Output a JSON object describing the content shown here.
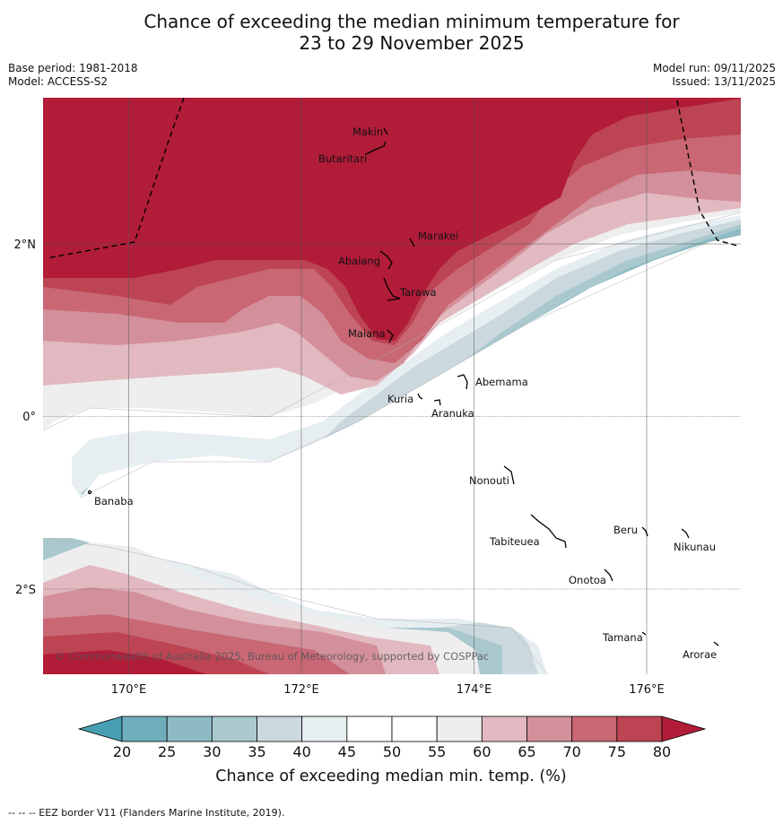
{
  "title": {
    "line1": "Chance of exceeding the median minimum temperature for",
    "line2": "23 to 29 November 2025"
  },
  "meta": {
    "base_period": "Base period: 1981-2018",
    "model": "Model: ACCESS-S2",
    "model_run": "Model run: 09/11/2025",
    "issued": "Issued: 13/11/2025"
  },
  "map": {
    "lon_labels": [
      "170°E",
      "172°E",
      "174°E",
      "176°E"
    ],
    "lat_labels": [
      "2°N",
      "0°",
      "2°S"
    ],
    "copyright": "© Commonwealth of Australia 2025, Bureau of Meteorology, supported by COSPPac",
    "places": [
      {
        "name": "Makin"
      },
      {
        "name": "Butaritari"
      },
      {
        "name": "Marakei"
      },
      {
        "name": "Abaiang"
      },
      {
        "name": "Tarawa"
      },
      {
        "name": "Maiana"
      },
      {
        "name": "Abemama"
      },
      {
        "name": "Kuria"
      },
      {
        "name": "Aranuka"
      },
      {
        "name": "Nonouti"
      },
      {
        "name": "Banaba"
      },
      {
        "name": "Beru"
      },
      {
        "name": "Tabiteuea"
      },
      {
        "name": "Nikunau"
      },
      {
        "name": "Onotoa"
      },
      {
        "name": "Tamana"
      },
      {
        "name": "Arorae"
      }
    ]
  },
  "colorbar": {
    "ticks": [
      "20",
      "25",
      "30",
      "35",
      "40",
      "45",
      "50",
      "55",
      "60",
      "65",
      "70",
      "75",
      "80"
    ],
    "colors": [
      "#47a0b1",
      "#6eaebb",
      "#8dbac4",
      "#aac9cf",
      "#cbd9de",
      "#e7eef1",
      "#ffffff",
      "#ffffff",
      "#eeeeee",
      "#e2b9c0",
      "#d3909b",
      "#c96774",
      "#bd4453",
      "#b11c38"
    ],
    "label": "Chance of exceeding median min. temp. (%)"
  },
  "footer": "--  --  -- EEZ border V11 (Flanders Marine Institute, 2019)."
}
